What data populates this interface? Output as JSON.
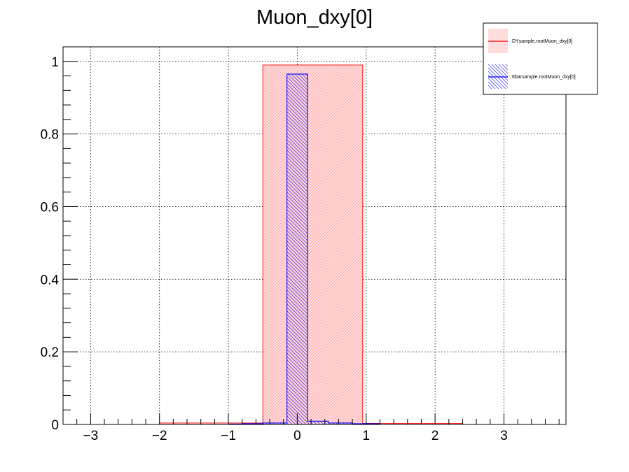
{
  "chart_data": {
    "type": "histogram",
    "title": "Muon_dxy[0]",
    "xlim": [
      -3.4,
      3.9
    ],
    "ylim": [
      0,
      1.04
    ],
    "grid": true,
    "legend_position": "top-right",
    "x_ticks": [
      -3,
      -2,
      -1,
      0,
      1,
      2,
      3
    ],
    "x_tick_labels": [
      "−3",
      "−2",
      "−1",
      "0",
      "1",
      "2",
      "3"
    ],
    "y_ticks": [
      0,
      0.2,
      0.4,
      0.6,
      0.8,
      1
    ],
    "y_tick_labels": [
      "0",
      "0.2",
      "0.4",
      "0.6",
      "0.8",
      "1"
    ],
    "series": [
      {
        "name": "DYsample.rootMuon_dxy[0]",
        "color": "#ff0000",
        "fill": "#ffdddd",
        "bins": [
          {
            "x0": -3.4,
            "x1": -2.0,
            "y": 0.0
          },
          {
            "x0": -2.0,
            "x1": -0.5,
            "y": 0.004
          },
          {
            "x0": -0.5,
            "x1": 0.95,
            "y": 0.99
          },
          {
            "x0": 0.95,
            "x1": 2.4,
            "y": 0.003
          },
          {
            "x0": 2.4,
            "x1": 3.9,
            "y": 0.0
          }
        ]
      },
      {
        "name": "ttbarsample.rootMuon_dxy[0]",
        "color": "#0000ff",
        "fill": "hatch",
        "bins": [
          {
            "x0": -3.4,
            "x1": -1.0,
            "y": 0.0
          },
          {
            "x0": -1.0,
            "x1": -0.8,
            "y": 0.001
          },
          {
            "x0": -0.8,
            "x1": -0.5,
            "y": 0.002
          },
          {
            "x0": -0.5,
            "x1": -0.15,
            "y": 0.004
          },
          {
            "x0": -0.15,
            "x1": 0.15,
            "y": 0.965
          },
          {
            "x0": 0.15,
            "x1": 0.45,
            "y": 0.009
          },
          {
            "x0": 0.45,
            "x1": 0.8,
            "y": 0.004
          },
          {
            "x0": 0.8,
            "x1": 1.2,
            "y": 0.002
          },
          {
            "x0": 1.2,
            "x1": 3.9,
            "y": 0.0
          }
        ]
      }
    ]
  }
}
